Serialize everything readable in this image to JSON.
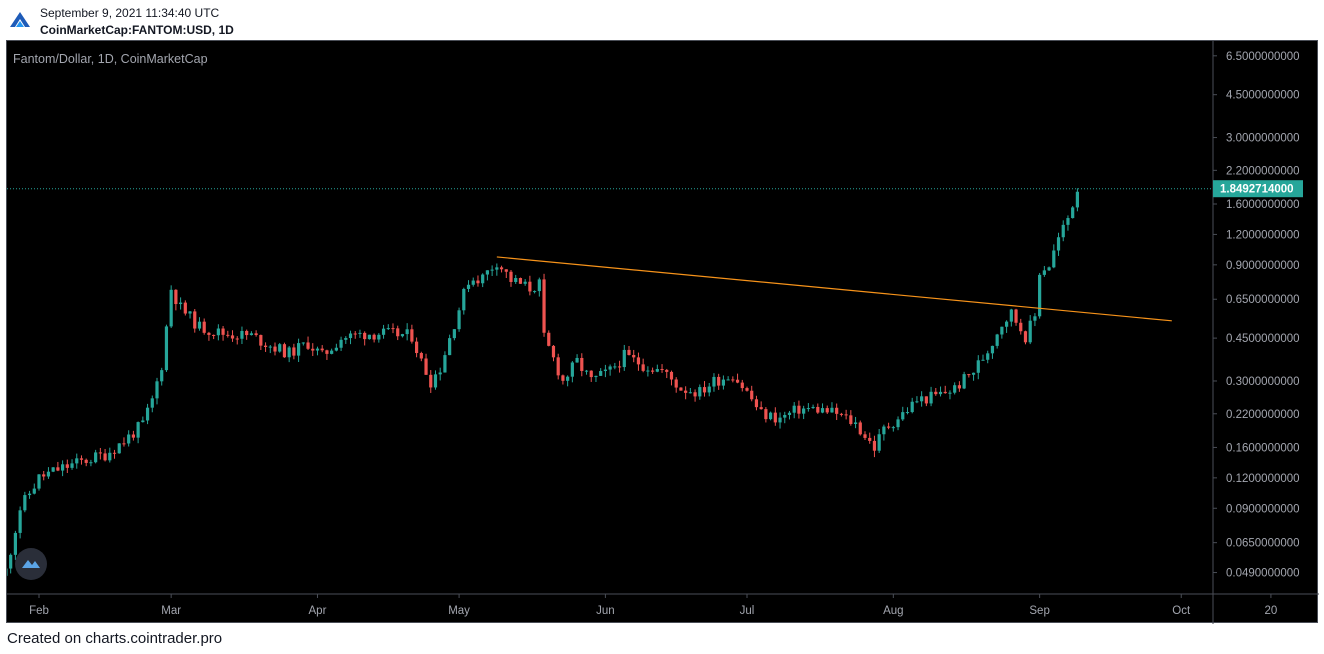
{
  "header": {
    "datetime": "September 9, 2021 11:34:40 UTC",
    "symbol": "CoinMarketCap:FANTOM:USD, 1D"
  },
  "footer": {
    "text": "Created on charts.cointrader.pro"
  },
  "colors": {
    "up": "#26a69a",
    "down": "#ef5350",
    "trendline": "#f7931a",
    "last_price_bg": "#26a69a"
  },
  "chart_data": {
    "type": "candlestick",
    "title": "Fantom/Dollar, 1D, CoinMarketCap",
    "y_scale": "log",
    "ylim": [
      0.04,
      7.2
    ],
    "y_ticks": [
      {
        "value": 6.5,
        "label": "6.5000000000"
      },
      {
        "value": 4.5,
        "label": "4.5000000000"
      },
      {
        "value": 3.0,
        "label": "3.0000000000"
      },
      {
        "value": 2.2,
        "label": "2.2000000000"
      },
      {
        "value": 1.6,
        "label": "1.6000000000"
      },
      {
        "value": 1.2,
        "label": "1.2000000000"
      },
      {
        "value": 0.9,
        "label": "0.9000000000"
      },
      {
        "value": 0.65,
        "label": "0.6500000000"
      },
      {
        "value": 0.45,
        "label": "0.4500000000"
      },
      {
        "value": 0.3,
        "label": "0.3000000000"
      },
      {
        "value": 0.22,
        "label": "0.2200000000"
      },
      {
        "value": 0.16,
        "label": "0.1600000000"
      },
      {
        "value": 0.12,
        "label": "0.1200000000"
      },
      {
        "value": 0.09,
        "label": "0.0900000000"
      },
      {
        "value": 0.065,
        "label": "0.0650000000"
      },
      {
        "value": 0.049,
        "label": "0.0490000000"
      }
    ],
    "x_ticks": [
      {
        "date": "2021-02-01",
        "label": "Feb"
      },
      {
        "date": "2021-03-01",
        "label": "Mar"
      },
      {
        "date": "2021-04-01",
        "label": "Apr"
      },
      {
        "date": "2021-05-01",
        "label": "May"
      },
      {
        "date": "2021-06-01",
        "label": "Jun"
      },
      {
        "date": "2021-07-01",
        "label": "Jul"
      },
      {
        "date": "2021-08-01",
        "label": "Aug"
      },
      {
        "date": "2021-09-01",
        "label": "Sep"
      },
      {
        "date": "2021-10-01",
        "label": "Oct"
      },
      {
        "date": "2021-10-20",
        "label": "20"
      }
    ],
    "last_price": {
      "value": 1.8492714,
      "label": "1.8492714000"
    },
    "trendline": {
      "start": {
        "date": "2021-05-09",
        "value": 0.97
      },
      "end": {
        "date": "2021-09-29",
        "value": 0.53
      }
    },
    "close_series": [
      {
        "date": "2021-01-25",
        "close": 0.05
      },
      {
        "date": "2021-01-28",
        "close": 0.09
      },
      {
        "date": "2021-02-01",
        "close": 0.12
      },
      {
        "date": "2021-02-05",
        "close": 0.13
      },
      {
        "date": "2021-02-10",
        "close": 0.14
      },
      {
        "date": "2021-02-15",
        "close": 0.15
      },
      {
        "date": "2021-02-19",
        "close": 0.17
      },
      {
        "date": "2021-02-23",
        "close": 0.2
      },
      {
        "date": "2021-02-25",
        "close": 0.25
      },
      {
        "date": "2021-02-27",
        "close": 0.35
      },
      {
        "date": "2021-02-28",
        "close": 0.5
      },
      {
        "date": "2021-03-01",
        "close": 0.72
      },
      {
        "date": "2021-03-03",
        "close": 0.6
      },
      {
        "date": "2021-03-07",
        "close": 0.5
      },
      {
        "date": "2021-03-12",
        "close": 0.47
      },
      {
        "date": "2021-03-18",
        "close": 0.46
      },
      {
        "date": "2021-03-22",
        "close": 0.42
      },
      {
        "date": "2021-03-26",
        "close": 0.39
      },
      {
        "date": "2021-03-30",
        "close": 0.43
      },
      {
        "date": "2021-04-02",
        "close": 0.38
      },
      {
        "date": "2021-04-06",
        "close": 0.45
      },
      {
        "date": "2021-04-11",
        "close": 0.47
      },
      {
        "date": "2021-04-16",
        "close": 0.47
      },
      {
        "date": "2021-04-21",
        "close": 0.46
      },
      {
        "date": "2021-04-23",
        "close": 0.36
      },
      {
        "date": "2021-04-25",
        "close": 0.3
      },
      {
        "date": "2021-04-27",
        "close": 0.34
      },
      {
        "date": "2021-04-30",
        "close": 0.52
      },
      {
        "date": "2021-05-03",
        "close": 0.78
      },
      {
        "date": "2021-05-06",
        "close": 0.8
      },
      {
        "date": "2021-05-09",
        "close": 0.93
      },
      {
        "date": "2021-05-12",
        "close": 0.78
      },
      {
        "date": "2021-05-16",
        "close": 0.72
      },
      {
        "date": "2021-05-18",
        "close": 0.75
      },
      {
        "date": "2021-05-19",
        "close": 0.45
      },
      {
        "date": "2021-05-21",
        "close": 0.37
      },
      {
        "date": "2021-05-23",
        "close": 0.3
      },
      {
        "date": "2021-05-26",
        "close": 0.36
      },
      {
        "date": "2021-05-29",
        "close": 0.3
      },
      {
        "date": "2021-06-02",
        "close": 0.33
      },
      {
        "date": "2021-06-05",
        "close": 0.38
      },
      {
        "date": "2021-06-09",
        "close": 0.35
      },
      {
        "date": "2021-06-13",
        "close": 0.33
      },
      {
        "date": "2021-06-17",
        "close": 0.28
      },
      {
        "date": "2021-06-21",
        "close": 0.27
      },
      {
        "date": "2021-06-24",
        "close": 0.3
      },
      {
        "date": "2021-06-28",
        "close": 0.32
      },
      {
        "date": "2021-07-01",
        "close": 0.27
      },
      {
        "date": "2021-07-04",
        "close": 0.22
      },
      {
        "date": "2021-07-08",
        "close": 0.21
      },
      {
        "date": "2021-07-12",
        "close": 0.23
      },
      {
        "date": "2021-07-16",
        "close": 0.23
      },
      {
        "date": "2021-07-20",
        "close": 0.22
      },
      {
        "date": "2021-07-24",
        "close": 0.2
      },
      {
        "date": "2021-07-28",
        "close": 0.16
      },
      {
        "date": "2021-07-30",
        "close": 0.19
      },
      {
        "date": "2021-08-03",
        "close": 0.22
      },
      {
        "date": "2021-08-06",
        "close": 0.25
      },
      {
        "date": "2021-08-10",
        "close": 0.26
      },
      {
        "date": "2021-08-14",
        "close": 0.28
      },
      {
        "date": "2021-08-18",
        "close": 0.33
      },
      {
        "date": "2021-08-21",
        "close": 0.4
      },
      {
        "date": "2021-08-24",
        "close": 0.52
      },
      {
        "date": "2021-08-26",
        "close": 0.57
      },
      {
        "date": "2021-08-29",
        "close": 0.46
      },
      {
        "date": "2021-08-31",
        "close": 0.55
      },
      {
        "date": "2021-09-01",
        "close": 0.85
      },
      {
        "date": "2021-09-03",
        "close": 0.9
      },
      {
        "date": "2021-09-05",
        "close": 1.15
      },
      {
        "date": "2021-09-07",
        "close": 1.4
      },
      {
        "date": "2021-09-09",
        "close": 1.85
      }
    ]
  }
}
